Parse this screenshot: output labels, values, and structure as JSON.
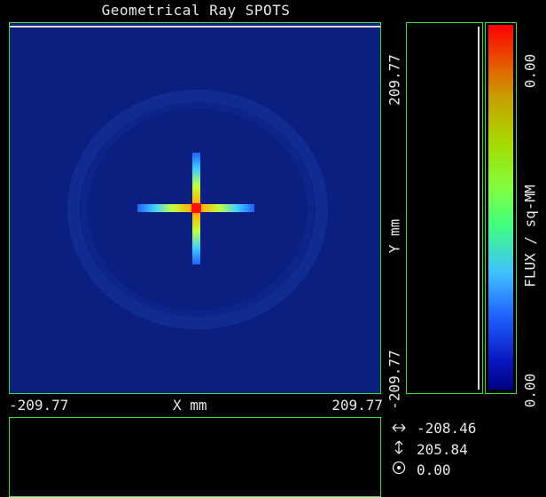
{
  "window": {
    "title": "Geometrical Ray SPOTS"
  },
  "plot": {
    "x_axis": {
      "label": "X mm",
      "min": "-209.77",
      "max": "209.77"
    },
    "y_axis": {
      "label": "Y mm",
      "min": "-209.77",
      "max": "209.77"
    },
    "background_color": "#0a1f80"
  },
  "colorbar": {
    "label": "FLUX / sq-MM",
    "min": "0.00",
    "max": "0.00"
  },
  "readouts": {
    "x_icon": "horizontal-arrows-icon",
    "x_value": "-208.46",
    "y_icon": "vertical-arrows-icon",
    "y_value": "205.84",
    "z_icon": "circle-dot-icon",
    "z_value": "0.00"
  },
  "colors": {
    "frame_green": "#3ddc3d",
    "text": "#e8e8e8"
  }
}
